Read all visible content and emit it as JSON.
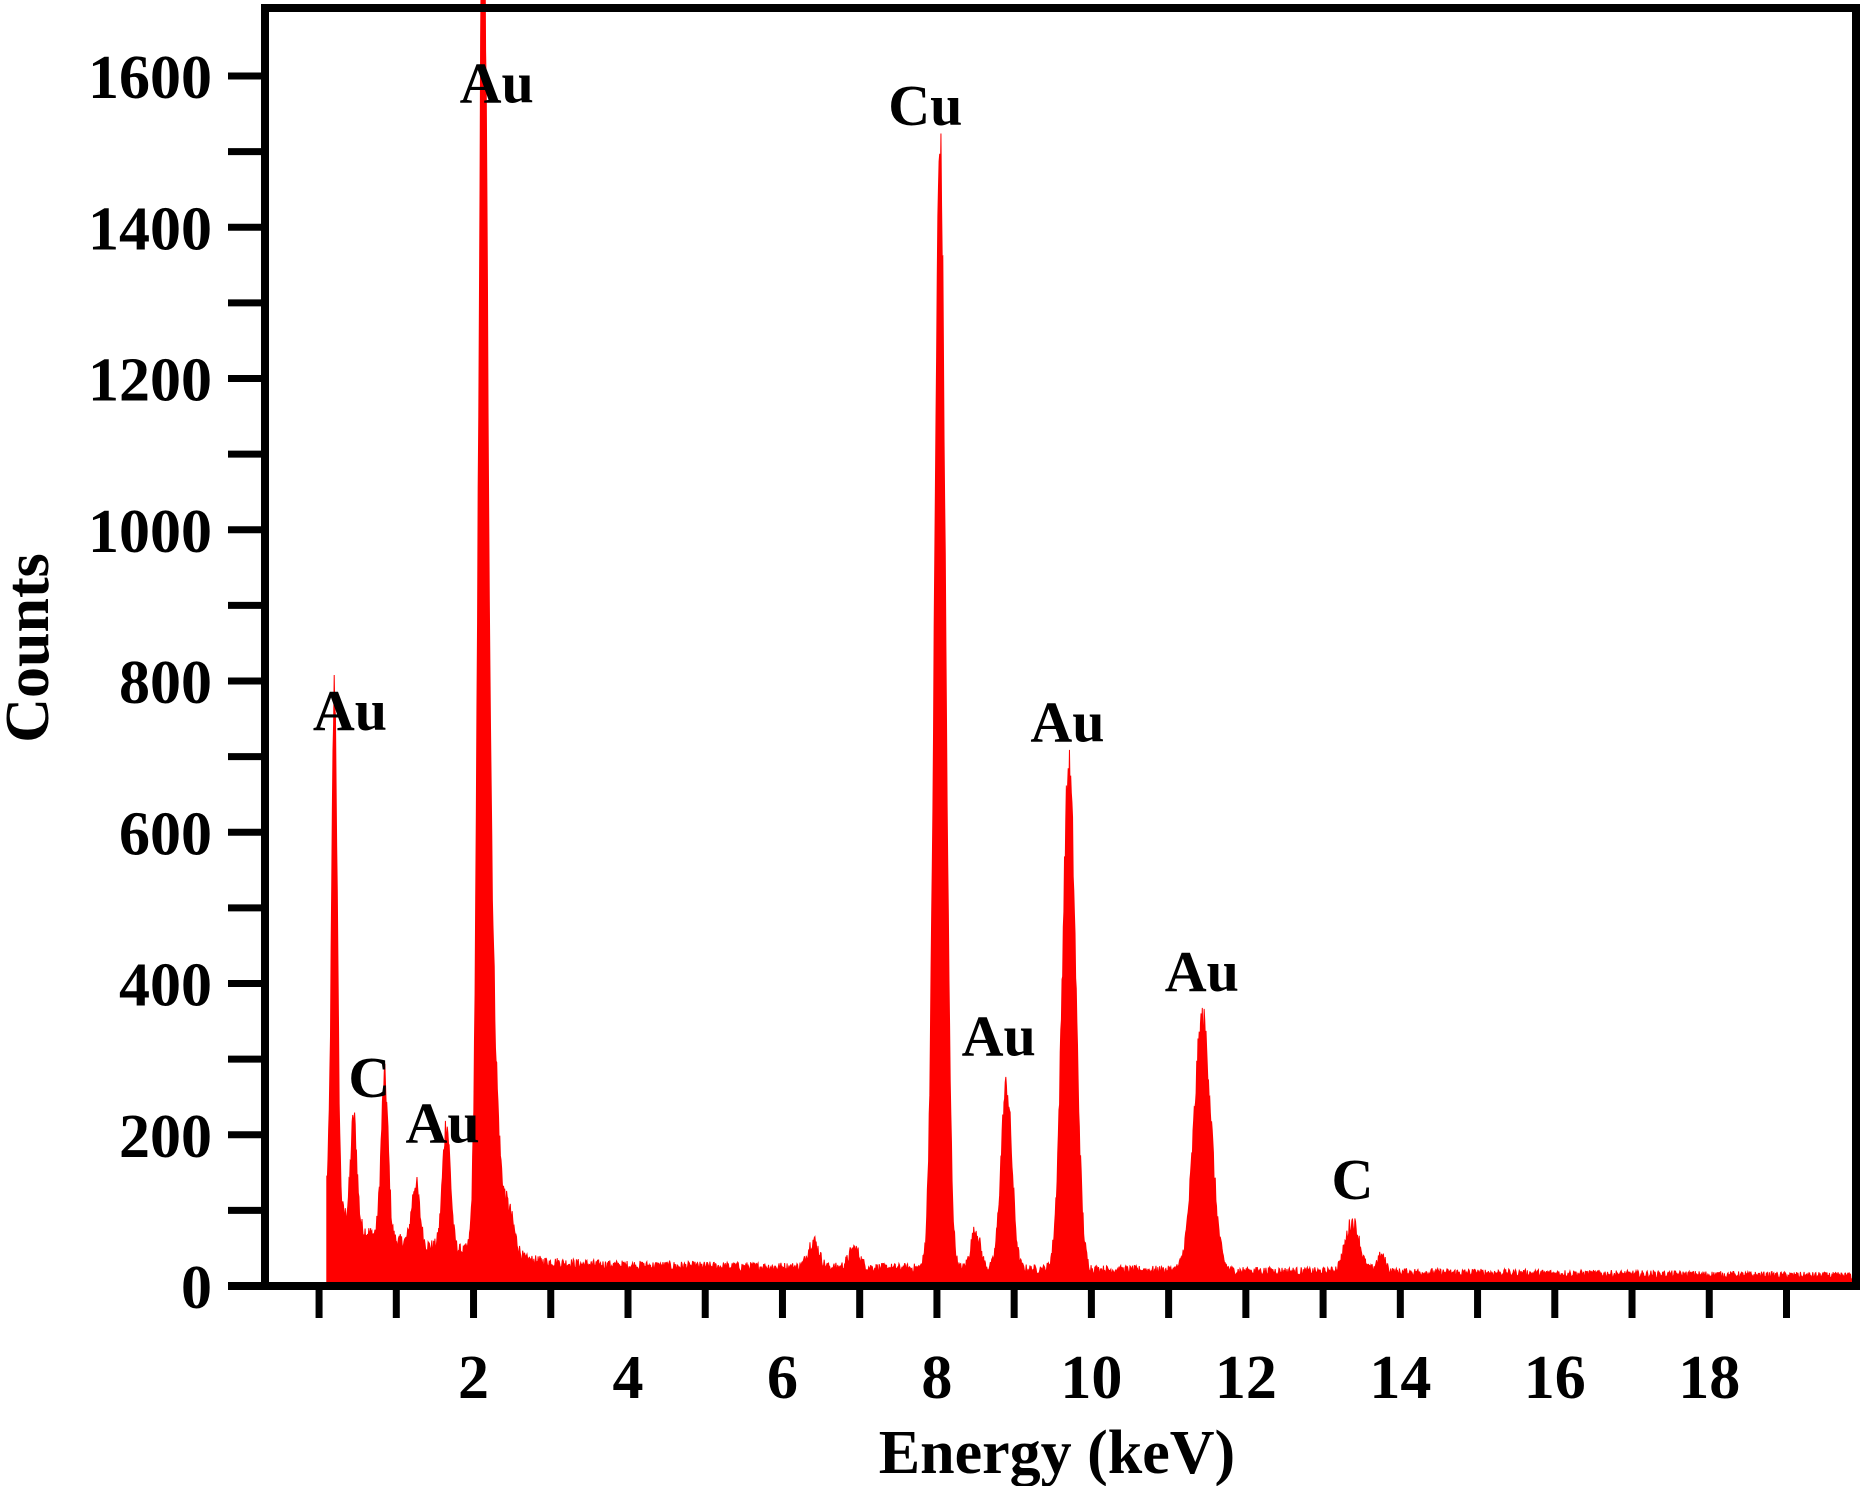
{
  "chart_data": {
    "type": "area",
    "title": "",
    "xlabel": "Energy (keV)",
    "ylabel": "Counts",
    "xlim": [
      -0.7,
      19.9
    ],
    "ylim": [
      0,
      1690
    ],
    "xticks": [
      2,
      4,
      6,
      8,
      10,
      12,
      14,
      16,
      18
    ],
    "yticks": [
      0,
      200,
      400,
      600,
      800,
      1000,
      1200,
      1400,
      1600
    ],
    "series_color": "#ff0000",
    "background_level": 30,
    "peaks": [
      {
        "x": 0.2,
        "y": 680,
        "w": 0.035
      },
      {
        "x": 0.45,
        "y": 140,
        "w": 0.04
      },
      {
        "x": 0.85,
        "y": 210,
        "w": 0.045
      },
      {
        "x": 1.25,
        "y": 80,
        "w": 0.05
      },
      {
        "x": 1.65,
        "y": 165,
        "w": 0.05
      },
      {
        "x": 2.12,
        "y": 1550,
        "w": 0.055
      },
      {
        "x": 2.2,
        "y": 420,
        "w": 0.09
      },
      {
        "x": 2.45,
        "y": 60,
        "w": 0.08
      },
      {
        "x": 6.4,
        "y": 35,
        "w": 0.07
      },
      {
        "x": 6.93,
        "y": 25,
        "w": 0.07
      },
      {
        "x": 8.04,
        "y": 1480,
        "w": 0.07
      },
      {
        "x": 8.5,
        "y": 50,
        "w": 0.06
      },
      {
        "x": 8.9,
        "y": 240,
        "w": 0.07
      },
      {
        "x": 9.71,
        "y": 660,
        "w": 0.085
      },
      {
        "x": 11.44,
        "y": 330,
        "w": 0.11
      },
      {
        "x": 13.38,
        "y": 65,
        "w": 0.09
      },
      {
        "x": 13.75,
        "y": 20,
        "w": 0.06
      }
    ],
    "annotations": [
      {
        "label": "Au",
        "x": 0.4,
        "y": 735
      },
      {
        "label": "C",
        "x": 0.65,
        "y": 250
      },
      {
        "label": "Au",
        "x": 1.6,
        "y": 190
      },
      {
        "label": "Au",
        "x": 2.3,
        "y": 1565
      },
      {
        "label": "Cu",
        "x": 7.85,
        "y": 1535
      },
      {
        "label": "Au",
        "x": 8.8,
        "y": 305
      },
      {
        "label": "Au",
        "x": 9.69,
        "y": 720
      },
      {
        "label": "Au",
        "x": 11.43,
        "y": 390
      },
      {
        "label": "C",
        "x": 13.38,
        "y": 115
      }
    ]
  }
}
